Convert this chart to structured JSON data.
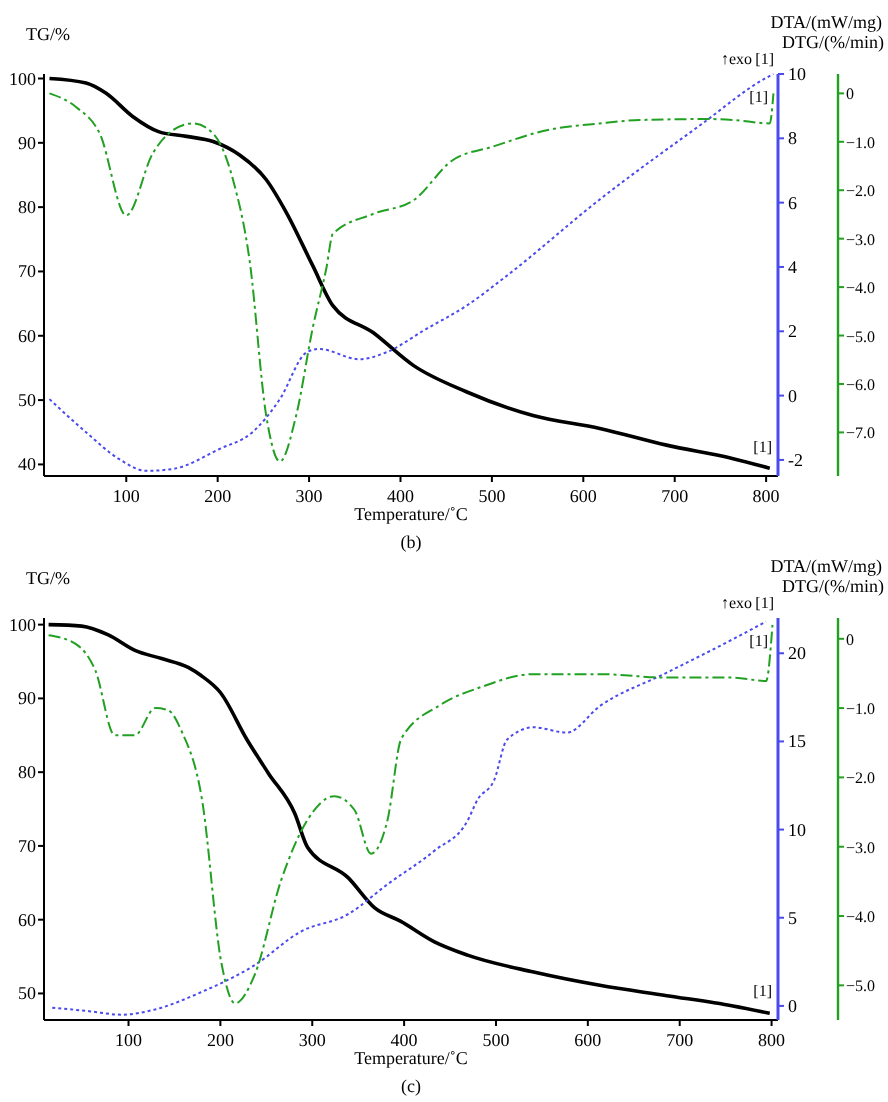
{
  "chart_data": [
    {
      "type": "line",
      "title": "(b)",
      "xlabel": "Temperature/˚C",
      "ylabel": "TG/%",
      "y2label": "DTA/(mW/mg)",
      "y3label": "DTG/(%/min)",
      "xlim": [
        10,
        813
      ],
      "xticks": [
        100,
        200,
        300,
        400,
        500,
        600,
        700,
        800
      ],
      "ylim": [
        38.2,
        100.7
      ],
      "yticks": [
        40,
        50,
        60,
        70,
        80,
        90,
        100
      ],
      "y2lim": [
        -2.5,
        10
      ],
      "y2ticks": [
        -2,
        0,
        2,
        4,
        6,
        8,
        10
      ],
      "y3lim": [
        -7.9,
        0.4
      ],
      "y3ticks": [
        0,
        {
          "value": -1,
          "label": "−1.0"
        },
        {
          "value": -2,
          "label": "−2.0"
        },
        {
          "value": -3,
          "label": "−3.0"
        },
        {
          "value": -4,
          "label": "−4.0"
        },
        {
          "value": -5,
          "label": "−5.0"
        },
        {
          "value": -6,
          "label": "−6.0"
        },
        {
          "value": -7,
          "label": "−7.0"
        }
      ],
      "annotations": [
        "↑exo",
        "[1]",
        "[1]",
        "[1]"
      ],
      "series": [
        {
          "color": "#000000",
          "line_style": "solid",
          "x": [
            16,
            56,
            78,
            107,
            136,
            166,
            195,
            224,
            253,
            275,
            304,
            326,
            370,
            414,
            472,
            545,
            618,
            691,
            764,
            804
          ],
          "values": [
            100,
            99.3,
            97.7,
            94.1,
            91.7,
            91,
            90.2,
            88.1,
            84.3,
            79.2,
            70.9,
            64.7,
            60.5,
            55.4,
            51.3,
            47.6,
            45.6,
            43,
            40.9,
            39.4
          ]
        },
        {
          "axis": "y2",
          "color": "#4a4aee",
          "line_style": "dotted",
          "x": [
            16,
            56,
            92,
            122,
            151,
            202,
            238,
            268,
            297,
            311,
            355,
            384,
            428,
            472,
            516,
            618,
            727,
            800,
            808
          ],
          "values": [
            -0.11,
            -1.14,
            -1.97,
            -2.34,
            -2.28,
            -1.66,
            -1.14,
            -0.11,
            1.34,
            1.45,
            1.13,
            1.34,
            2.07,
            2.79,
            3.72,
            6.1,
            8.39,
            9.88,
            10
          ]
        },
        {
          "axis": "y3",
          "color": "#22a022",
          "line_style": "dashed",
          "x": [
            16,
            45,
            71,
            100,
            129,
            151,
            173,
            195,
            217,
            235,
            253,
            268,
            286,
            304,
            319,
            326,
            370,
            414,
            457,
            501,
            560,
            618,
            662,
            735,
            764,
            804,
            808
          ],
          "values": [
            0,
            -0.28,
            -0.83,
            -2.52,
            -1.24,
            -0.76,
            -0.62,
            -0.83,
            -1.8,
            -3.46,
            -6.64,
            -7.6,
            -6.64,
            -4.84,
            -3.6,
            -2.9,
            -2.49,
            -2.21,
            -1.38,
            -1.1,
            -0.76,
            -0.62,
            -0.55,
            -0.53,
            -0.55,
            -0.62,
            0
          ]
        }
      ]
    },
    {
      "type": "line",
      "title": "(c)",
      "xlabel": "Temperature/˚C",
      "ylabel": "TG/%",
      "y2label": "DTA/(mW/mg)",
      "y3label": "DTG/(%/min)",
      "xlim": [
        8,
        807
      ],
      "xticks": [
        100,
        200,
        300,
        400,
        500,
        600,
        700,
        800
      ],
      "ylim": [
        46.4,
        100.9
      ],
      "yticks": [
        50,
        60,
        70,
        80,
        90,
        100
      ],
      "y2lim": [
        -0.8,
        22
      ],
      "y2ticks": [
        0,
        5,
        10,
        15,
        20
      ],
      "y3lim": [
        -5.5,
        0.3
      ],
      "y3ticks": [
        0,
        {
          "value": -1,
          "label": "−1.0"
        },
        {
          "value": -2,
          "label": "−2.0"
        },
        {
          "value": -3,
          "label": "−3.0"
        },
        {
          "value": -4,
          "label": "−4.0"
        },
        {
          "value": -5,
          "label": "−5.0"
        }
      ],
      "annotations": [
        "↑exo",
        "[1]",
        "[1]",
        "[1]"
      ],
      "series": [
        {
          "color": "#000000",
          "line_style": "solid",
          "x": [
            13,
            49,
            78,
            107,
            136,
            165,
            179,
            200,
            229,
            252,
            281,
            295,
            339,
            368,
            396,
            433,
            469,
            541,
            613,
            686,
            758,
            798
          ],
          "values": [
            100,
            99.8,
            98.6,
            96.5,
            95.4,
            94.2,
            93.1,
            90.8,
            84.4,
            79.9,
            74.4,
            69.8,
            65.7,
            61.6,
            59.8,
            57,
            55.2,
            52.9,
            51.1,
            49.7,
            48.3,
            47.3
          ]
        },
        {
          "axis": "y2",
          "color": "#4a4aee",
          "line_style": "dotted",
          "x": [
            17,
            57,
            93,
            129,
            180,
            237,
            287,
            339,
            382,
            433,
            469,
            480,
            498,
            512,
            541,
            577,
            613,
            686,
            758,
            794
          ],
          "values": [
            -0.1,
            -0.3,
            -0.5,
            -0.2,
            0.8,
            2.3,
            4.2,
            5.2,
            6.9,
            8.8,
            10.5,
            11.7,
            12.8,
            15.1,
            15.8,
            15.5,
            17,
            18.9,
            20.8,
            21.8
          ]
        },
        {
          "axis": "y3",
          "color": "#22a022",
          "line_style": "dashed",
          "x": [
            13,
            42,
            64,
            85,
            107,
            129,
            143,
            158,
            180,
            201,
            216,
            237,
            266,
            295,
            324,
            346,
            364,
            382,
            397,
            440,
            483,
            541,
            613,
            686,
            758,
            794,
            801
          ],
          "values": [
            0.05,
            -0.07,
            -0.46,
            -1.39,
            -1.39,
            -1,
            -1.03,
            -1.34,
            -2.32,
            -4.67,
            -5.26,
            -4.86,
            -3.49,
            -2.61,
            -2.27,
            -2.47,
            -3.1,
            -2.61,
            -1.44,
            -0.95,
            -0.7,
            -0.51,
            -0.51,
            -0.56,
            -0.56,
            -0.61,
            0.2
          ]
        }
      ]
    }
  ]
}
